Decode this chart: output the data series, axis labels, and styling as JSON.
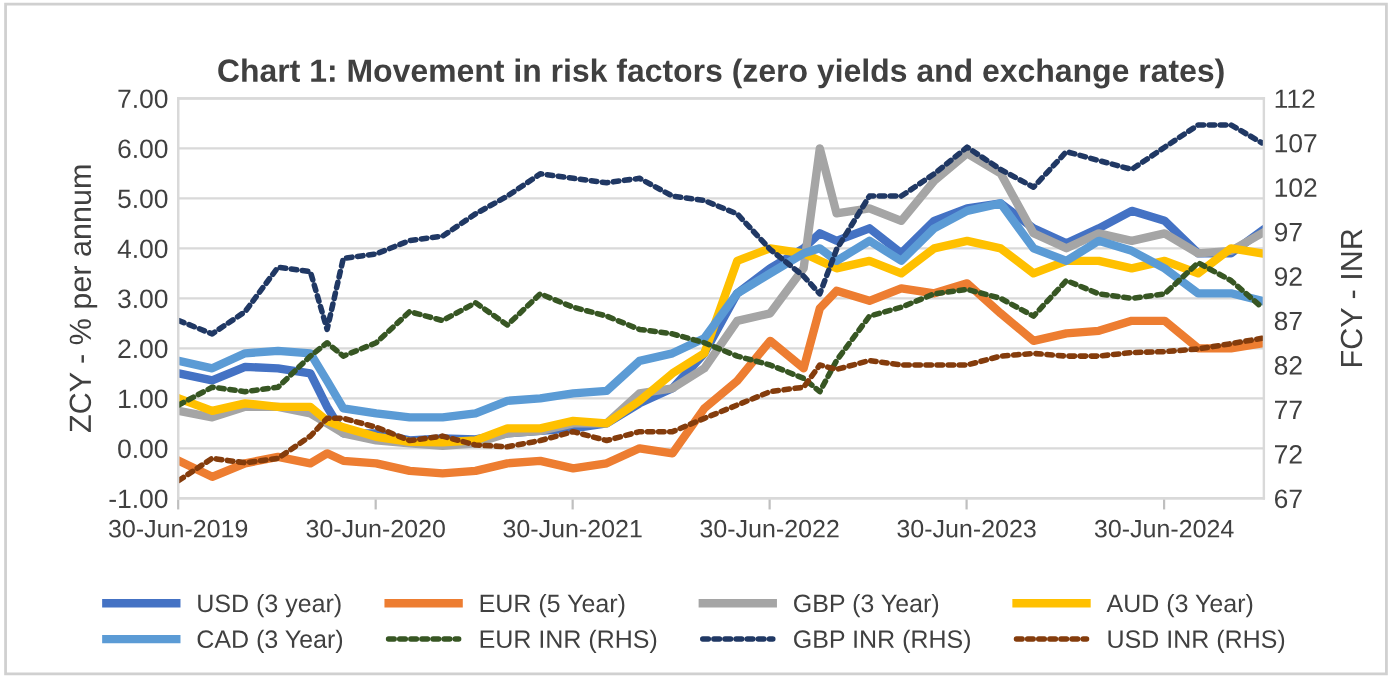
{
  "chart_data": {
    "type": "line",
    "title": "Chart 1: Movement in risk factors (zero yields and exchange rates)",
    "ylabel": "ZCY - % per annum",
    "y2label": "FCY - INR",
    "x": [
      "2019-07-01",
      "2019-09-01",
      "2019-11-01",
      "2020-01-01",
      "2020-03-01",
      "2020-04-01",
      "2020-05-01",
      "2020-07-01",
      "2020-09-01",
      "2020-11-01",
      "2021-01-01",
      "2021-03-01",
      "2021-05-01",
      "2021-07-01",
      "2021-09-01",
      "2021-11-01",
      "2022-01-01",
      "2022-03-01",
      "2022-05-01",
      "2022-07-01",
      "2022-09-01",
      "2022-10-01",
      "2022-11-01",
      "2023-01-01",
      "2023-03-01",
      "2023-05-01",
      "2023-07-01",
      "2023-09-01",
      "2023-11-01",
      "2024-01-01",
      "2024-03-01",
      "2024-05-01",
      "2024-07-01",
      "2024-09-01",
      "2024-11-01",
      "2024-12-28"
    ],
    "series": [
      {
        "name": "USD (3 year)",
        "color": "#4472c4",
        "line_style": "solid",
        "values": [
          1.5,
          1.36,
          1.63,
          1.6,
          1.5,
          0.83,
          0.3,
          0.3,
          0.16,
          0.2,
          0.18,
          0.3,
          0.35,
          0.4,
          0.5,
          0.9,
          1.2,
          1.9,
          3.1,
          3.6,
          4.0,
          4.3,
          4.15,
          4.4,
          3.9,
          4.55,
          4.8,
          4.9,
          4.4,
          4.1,
          4.4,
          4.75,
          4.55,
          3.9,
          3.9,
          4.35
        ]
      },
      {
        "name": "EUR (5 Year)",
        "color": "#ed7d31",
        "line_style": "solid",
        "values": [
          -0.25,
          -0.57,
          -0.3,
          -0.17,
          -0.3,
          -0.1,
          -0.25,
          -0.3,
          -0.45,
          -0.5,
          -0.45,
          -0.3,
          -0.25,
          -0.4,
          -0.3,
          0.0,
          -0.1,
          0.8,
          1.35,
          2.15,
          1.6,
          2.8,
          3.15,
          2.95,
          3.2,
          3.1,
          3.3,
          2.7,
          2.15,
          2.3,
          2.35,
          2.55,
          2.55,
          2.0,
          2.0,
          2.1
        ]
      },
      {
        "name": "GBP (3 Year)",
        "color": "#a5a5a5",
        "line_style": "solid",
        "values": [
          0.75,
          0.62,
          0.83,
          0.83,
          0.7,
          0.5,
          0.3,
          0.16,
          0.1,
          0.05,
          0.1,
          0.3,
          0.35,
          0.5,
          0.5,
          1.1,
          1.2,
          1.6,
          2.55,
          2.7,
          3.6,
          6.0,
          4.7,
          4.8,
          4.55,
          5.35,
          5.9,
          5.5,
          4.3,
          4.0,
          4.3,
          4.15,
          4.3,
          3.9,
          3.95,
          4.3
        ]
      },
      {
        "name": "AUD (3 Year)",
        "color": "#ffc000",
        "line_style": "solid",
        "values": [
          1.0,
          0.75,
          0.9,
          0.83,
          0.83,
          0.55,
          0.42,
          0.23,
          0.13,
          0.12,
          0.16,
          0.4,
          0.4,
          0.55,
          0.5,
          0.95,
          1.5,
          1.9,
          3.75,
          4.0,
          3.9,
          3.75,
          3.6,
          3.75,
          3.5,
          4.0,
          4.15,
          4.0,
          3.5,
          3.75,
          3.75,
          3.6,
          3.75,
          3.5,
          4.0,
          3.9
        ]
      },
      {
        "name": "CAD (3 Year)",
        "color": "#5b9bd5",
        "line_style": "solid",
        "values": [
          1.75,
          1.6,
          1.9,
          1.95,
          1.9,
          1.35,
          0.8,
          0.7,
          0.62,
          0.62,
          0.7,
          0.95,
          1.0,
          1.1,
          1.15,
          1.75,
          1.9,
          2.2,
          3.1,
          3.5,
          3.9,
          4.0,
          3.75,
          4.15,
          3.75,
          4.4,
          4.75,
          4.9,
          4.0,
          3.75,
          4.15,
          3.95,
          3.6,
          3.1,
          3.1,
          2.95
        ]
      },
      {
        "name": "EUR INR (RHS)",
        "color": "#375623",
        "line_style": "dotted",
        "axis": "y2",
        "values": [
          77.5,
          79.5,
          79,
          79.5,
          83,
          84.5,
          83,
          84.5,
          88,
          87,
          89,
          86.5,
          90,
          88.5,
          87.5,
          86,
          85.5,
          84.5,
          83,
          82,
          80.5,
          79,
          82.5,
          87.5,
          88.5,
          90,
          90.5,
          89.5,
          87.5,
          91.5,
          90,
          89.5,
          90,
          93.5,
          91.5,
          88.5
        ]
      },
      {
        "name": "GBP INR (RHS)",
        "color": "#203864",
        "line_style": "dotted",
        "axis": "y2",
        "values": [
          87,
          85.5,
          88,
          93,
          92.5,
          86,
          94,
          94.5,
          96,
          96.5,
          99,
          101,
          103.5,
          103,
          102.5,
          103,
          101,
          100.5,
          99,
          95,
          92,
          90,
          95,
          101,
          101,
          103.5,
          106.5,
          104,
          102,
          106,
          105,
          104,
          106.5,
          109,
          109,
          107
        ]
      },
      {
        "name": "USD INR (RHS)",
        "color": "#843c0c",
        "line_style": "dotted",
        "axis": "y2",
        "values": [
          69,
          71.5,
          71,
          71.5,
          74,
          76,
          76,
          75,
          73.5,
          74,
          73,
          72.8,
          73.5,
          74.5,
          73.5,
          74.5,
          74.5,
          76,
          77.5,
          79,
          79.5,
          82,
          81.5,
          82.5,
          82,
          82,
          82,
          83,
          83.3,
          83,
          83,
          83.4,
          83.5,
          83.8,
          84.4,
          85
        ]
      }
    ],
    "xlim": [
      "2019-06-30",
      "2025-01-01"
    ],
    "xticks": [
      {
        "value": "2019-06-30",
        "label": "30-Jun-2019"
      },
      {
        "value": "2020-06-30",
        "label": "30-Jun-2020"
      },
      {
        "value": "2021-06-30",
        "label": "30-Jun-2021"
      },
      {
        "value": "2022-06-30",
        "label": "30-Jun-2022"
      },
      {
        "value": "2023-06-30",
        "label": "30-Jun-2023"
      },
      {
        "value": "2024-06-30",
        "label": "30-Jun-2024"
      }
    ],
    "ylim": [
      -1,
      7
    ],
    "yticks": [
      {
        "value": -1,
        "label": "-1.00"
      },
      {
        "value": 0,
        "label": "0.00"
      },
      {
        "value": 1,
        "label": "1.00"
      },
      {
        "value": 2,
        "label": "2.00"
      },
      {
        "value": 3,
        "label": "3.00"
      },
      {
        "value": 4,
        "label": "4.00"
      },
      {
        "value": 5,
        "label": "5.00"
      },
      {
        "value": 6,
        "label": "6.00"
      },
      {
        "value": 7,
        "label": "7.00"
      }
    ],
    "y2lim": [
      67,
      112
    ],
    "y2ticks": [
      67,
      72,
      77,
      82,
      87,
      92,
      97,
      102,
      107,
      112
    ],
    "grid": "y",
    "legend": "bottom",
    "marker": "none"
  }
}
